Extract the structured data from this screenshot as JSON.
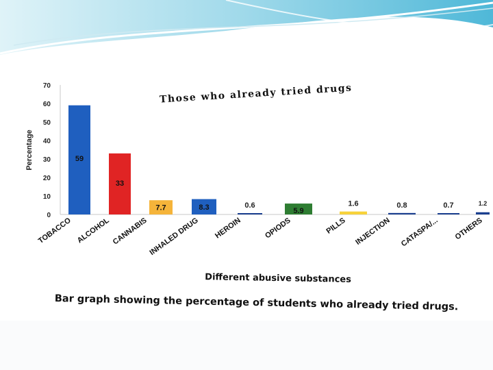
{
  "slide": {
    "caption": "Bar graph showing the percentage of students who already tried drugs."
  },
  "colors": {
    "blue": "#1f5fbf",
    "red": "#e02424",
    "orange": "#f5b43a",
    "green": "#2e7d32",
    "yellow": "#f7d23a",
    "navy": "#1a3f8f"
  },
  "chart_data": {
    "type": "bar",
    "title": "Those who already tried drugs",
    "xlabel": "Different abusive substances",
    "ylabel": "Percentage",
    "ylim": [
      0,
      70
    ],
    "yticks": [
      "0",
      "10",
      "20",
      "30",
      "40",
      "50",
      "60",
      "70"
    ],
    "grid": false,
    "legend": "none",
    "categories": [
      "TOBACCO",
      "ALCOHOL",
      "CANNABIS",
      "INHALED DRUG",
      "HEROIN",
      "OPIODS",
      "PILLS",
      "INJECTION",
      "CATASPA/...",
      "OTHERS"
    ],
    "values": [
      59,
      33,
      7.7,
      8.3,
      0.6,
      5.9,
      1.6,
      0.8,
      0.7,
      1.2
    ],
    "value_labels": [
      "59",
      "33",
      "7.7",
      "8.3",
      "0.6",
      "5.9",
      "1.6",
      "0.8",
      "0.7",
      "1.2"
    ],
    "bar_colors": [
      "#1f5fbf",
      "#e02424",
      "#f5b43a",
      "#1f5fbf",
      "#1a3f8f",
      "#2e7d32",
      "#f7d23a",
      "#1a3f8f",
      "#1a3f8f",
      "#1a3f8f"
    ]
  }
}
